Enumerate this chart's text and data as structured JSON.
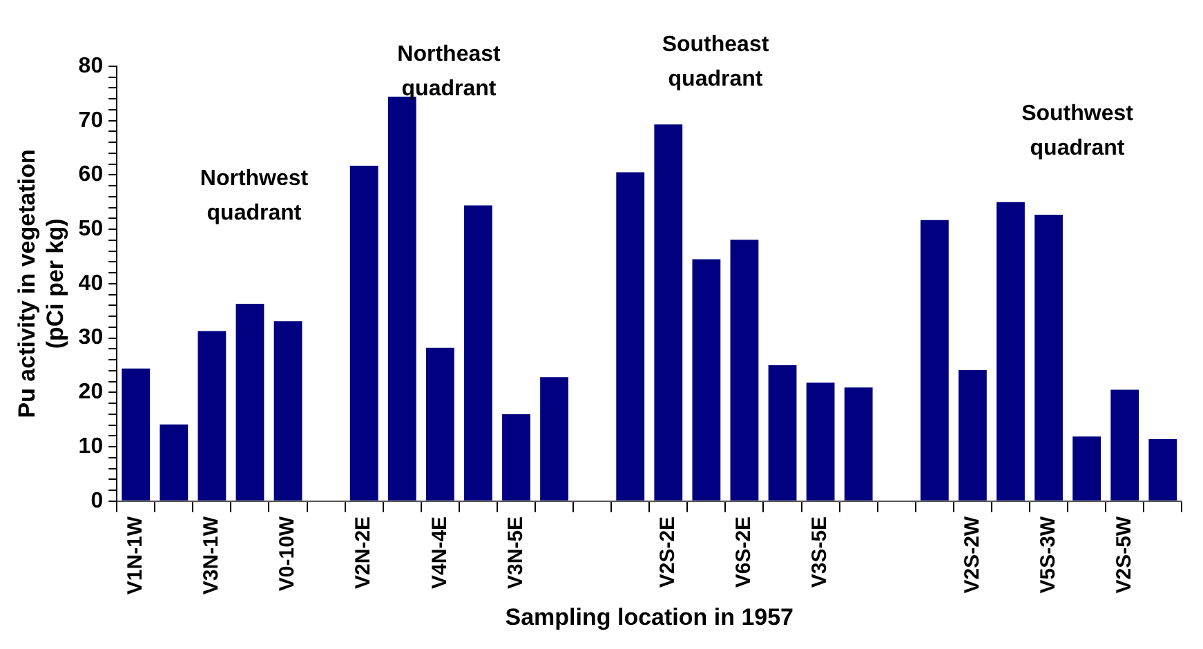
{
  "chart_data": {
    "type": "bar",
    "xlabel": "Sampling location in 1957",
    "ylabel": "Pu activity in vegetation (pCi per kg)",
    "categories": [
      "V1N-1W",
      null,
      "V3N-1W",
      null,
      "V0-10W",
      null,
      "V2N-2E",
      null,
      "V4N-4E",
      null,
      "V3N-5E",
      null,
      null,
      null,
      "V2S-2E",
      null,
      "V6S-2E",
      null,
      "V3S-5E",
      null,
      null,
      null,
      "V2S-2W",
      null,
      "V5S-3W",
      null,
      "V2S-5W",
      null
    ],
    "values": [
      24.4,
      14.1,
      31.3,
      36.3,
      33.1,
      null,
      61.7,
      74.4,
      28.2,
      54.4,
      16,
      22.8,
      null,
      60.5,
      69.3,
      44.5,
      48.1,
      25,
      21.8,
      20.9,
      null,
      51.7,
      24.1,
      55,
      52.7,
      11.9,
      20.5,
      11.4
    ],
    "color": "#000080",
    "ylim": [
      0,
      80
    ],
    "yticks": [
      0,
      {
        "value": 2,
        "label": null
      },
      {
        "value": 4,
        "label": null
      },
      {
        "value": 6,
        "label": null
      },
      {
        "value": 8,
        "label": null
      },
      10,
      {
        "value": 12,
        "label": null
      },
      {
        "value": 14,
        "label": null
      },
      {
        "value": 16,
        "label": null
      },
      {
        "value": 18,
        "label": null
      },
      20,
      {
        "value": 22,
        "label": null
      },
      {
        "value": 24,
        "label": null
      },
      {
        "value": 26,
        "label": null
      },
      {
        "value": 28,
        "label": null
      },
      30,
      {
        "value": 32,
        "label": null
      },
      {
        "value": 34,
        "label": null
      },
      {
        "value": 36,
        "label": null
      },
      {
        "value": 38,
        "label": null
      },
      40,
      {
        "value": 42,
        "label": null
      },
      {
        "value": 44,
        "label": null
      },
      {
        "value": 46,
        "label": null
      },
      {
        "value": 48,
        "label": null
      },
      50,
      {
        "value": 52,
        "label": null
      },
      {
        "value": 54,
        "label": null
      },
      {
        "value": 56,
        "label": null
      },
      {
        "value": 58,
        "label": null
      },
      60,
      {
        "value": 62,
        "label": null
      },
      {
        "value": 64,
        "label": null
      },
      {
        "value": 66,
        "label": null
      },
      {
        "value": 68,
        "label": null
      },
      70,
      {
        "value": 72,
        "label": null
      },
      {
        "value": 74,
        "label": null
      },
      {
        "value": 76,
        "label": null
      },
      {
        "value": 78,
        "label": null
      },
      80
    ],
    "grid": false,
    "legend": false,
    "annotations": [
      "Northwest quadrant",
      "Northeast quadrant",
      "Southeast quadrant",
      "Southwest quadrant"
    ]
  }
}
